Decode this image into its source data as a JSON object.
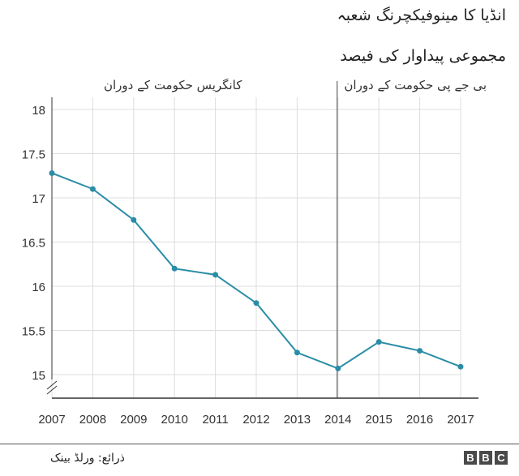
{
  "chart_data": {
    "type": "line",
    "title": "انڈیا کا مینوفیکچرنگ شعبہ",
    "subtitle": "مجموعی پیداوار کی فیصد",
    "x": [
      "2007",
      "2008",
      "2009",
      "2010",
      "2011",
      "2012",
      "2013",
      "2014",
      "2015",
      "2016",
      "2017"
    ],
    "series": [
      {
        "values": [
          17.28,
          17.1,
          16.75,
          16.2,
          16.13,
          15.81,
          15.25,
          15.07,
          15.37,
          15.27,
          15.09
        ]
      }
    ],
    "yticks": [
      "18",
      "17.5",
      "17",
      "16.5",
      "16",
      "15.5",
      "15"
    ],
    "ylim": [
      14.75,
      18
    ],
    "grid": true,
    "annotations": {
      "divider_at": "2014",
      "left_label": "کانگریس حکومت کے دوران",
      "right_label": "بی جے پی حکومت کے دوران"
    },
    "colors": {
      "line": "#2a8da6",
      "grid": "#dddddd",
      "axis": "#333333"
    }
  },
  "source": "ذرائع: ورلڈ بینک",
  "logo": {
    "letters": [
      "B",
      "B",
      "C"
    ]
  }
}
